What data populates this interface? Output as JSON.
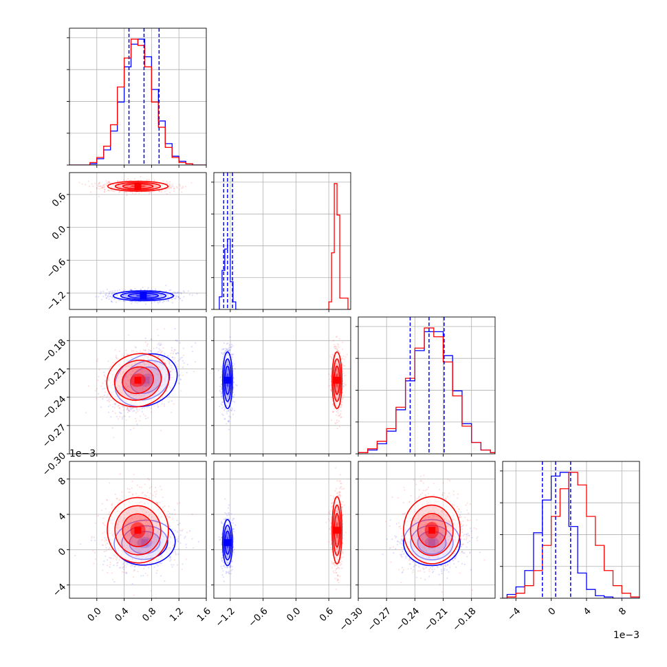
{
  "chart_data": {
    "type": "corner",
    "parameters": 4,
    "colors": {
      "blue": "#0000ff",
      "red": "#ff0000"
    },
    "axes": {
      "p1": {
        "range": [
          -0.4,
          1.6
        ],
        "ticks": [
          "0.0",
          "0.4",
          "0.8",
          "1.2",
          "1.6"
        ],
        "tick_values": [
          0.0,
          0.4,
          0.8,
          1.2,
          1.6
        ]
      },
      "p2": {
        "range": [
          -1.5,
          1.0
        ],
        "ticks": [
          "-1.2",
          "-0.6",
          "0.0",
          "0.6"
        ],
        "tick_values": [
          -1.2,
          -0.6,
          0.0,
          0.6
        ]
      },
      "p3": {
        "range": [
          -0.3,
          -0.155
        ],
        "ticks": [
          "-0.30",
          "-0.27",
          "-0.24",
          "-0.21",
          "-0.18"
        ],
        "tick_values": [
          -0.3,
          -0.27,
          -0.24,
          -0.21,
          -0.18
        ]
      },
      "p4": {
        "range": [
          -0.0055,
          0.01
        ],
        "ticks": [
          "-4",
          "0",
          "4",
          "8"
        ],
        "tick_values": [
          -0.004,
          0.0,
          0.004,
          0.008
        ],
        "multiplier": "1e−3"
      }
    },
    "quantile_lines": {
      "p1": [
        0.47,
        0.69,
        0.91
      ],
      "p2": [
        -1.32,
        -1.25,
        -1.16
      ],
      "p3": [
        -0.245,
        -0.225,
        -0.209
      ],
      "p4": [
        -0.001,
        0.0005,
        0.0022
      ]
    },
    "series": [
      {
        "color": "blue",
        "hist": {
          "p1": {
            "edges": [
              -0.4,
              -0.3,
              -0.2,
              -0.1,
              0.0,
              0.1,
              0.2,
              0.3,
              0.4,
              0.5,
              0.6,
              0.7,
              0.8,
              0.9,
              1.0,
              1.1,
              1.2,
              1.3,
              1.4,
              1.5,
              1.6
            ],
            "counts": [
              0,
              0,
              0,
              0.01,
              0.05,
              0.12,
              0.27,
              0.5,
              0.78,
              0.96,
              1.0,
              0.86,
              0.6,
              0.35,
              0.17,
              0.07,
              0.03,
              0.01,
              0,
              0
            ]
          },
          "p2": {
            "edges": [
              -1.4,
              -1.35,
              -1.3,
              -1.25,
              -1.2,
              -1.15,
              -1.1,
              -1.05
            ],
            "counts": [
              0.1,
              0.31,
              0.48,
              0.56,
              0.22,
              0.06,
              0.0
            ]
          },
          "p3": {
            "edges": [
              -0.3,
              -0.29,
              -0.28,
              -0.27,
              -0.26,
              -0.25,
              -0.24,
              -0.23,
              -0.22,
              -0.21,
              -0.2,
              -0.19,
              -0.18,
              -0.17,
              -0.16,
              -0.155
            ],
            "counts": [
              0.01,
              0.03,
              0.08,
              0.18,
              0.35,
              0.58,
              0.82,
              0.97,
              0.97,
              0.78,
              0.5,
              0.24,
              0.09,
              0.03,
              0.01
            ]
          },
          "p4": {
            "edges": [
              -0.006,
              -0.005,
              -0.004,
              -0.003,
              -0.002,
              -0.001,
              0.0,
              0.001,
              0.002,
              0.003,
              0.004,
              0.005,
              0.006,
              0.007,
              0.008,
              0.009,
              0.01
            ],
            "counts": [
              0.0,
              0.03,
              0.09,
              0.22,
              0.52,
              0.78,
              0.97,
              1.0,
              0.57,
              0.2,
              0.07,
              0.02,
              0.01,
              0,
              0,
              0
            ]
          }
        },
        "density": {
          "p1_p2": {
            "x": 0.68,
            "y": -1.25,
            "sx": 0.22,
            "sy": 0.045,
            "rho": 0.0
          },
          "p1_p3": {
            "x": 0.72,
            "y": -0.222,
            "sx": 0.22,
            "sy": 0.015,
            "rho": 0.5
          },
          "p2_p3": {
            "x": -1.25,
            "y": -0.222,
            "sx": 0.045,
            "sy": 0.015,
            "rho": 0.0
          },
          "p1_p4": {
            "x": 0.7,
            "y": 0.0008,
            "sx": 0.22,
            "sy": 0.0013,
            "rho": 0.1
          },
          "p2_p4": {
            "x": -1.25,
            "y": 0.0008,
            "sx": 0.045,
            "sy": 0.0013,
            "rho": 0.0
          },
          "p3_p4": {
            "x": -0.222,
            "y": 0.0008,
            "sx": 0.015,
            "sy": 0.0013,
            "rho": 0.0
          }
        }
      },
      {
        "color": "red",
        "hist": {
          "p1": {
            "edges": [
              -0.4,
              -0.3,
              -0.2,
              -0.1,
              0.0,
              0.1,
              0.2,
              0.3,
              0.4,
              0.5,
              0.6,
              0.7,
              0.8,
              0.9,
              1.0,
              1.1,
              1.2,
              1.3,
              1.4,
              1.5,
              1.6
            ],
            "counts": [
              0,
              0,
              0,
              0.02,
              0.06,
              0.15,
              0.32,
              0.62,
              0.85,
              1.0,
              0.95,
              0.78,
              0.5,
              0.3,
              0.14,
              0.06,
              0.02,
              0.01,
              0,
              0
            ]
          },
          "p2": {
            "edges": [
              0.55,
              0.6,
              0.65,
              0.7,
              0.75,
              0.8,
              0.85,
              0.9,
              0.95,
              1.0
            ],
            "counts": [
              0.0,
              0.06,
              0.45,
              1.0,
              0.75,
              0.09,
              0.09,
              0.09,
              0.0
            ]
          },
          "p3": {
            "edges": [
              -0.3,
              -0.29,
              -0.28,
              -0.27,
              -0.26,
              -0.25,
              -0.24,
              -0.23,
              -0.22,
              -0.21,
              -0.2,
              -0.19,
              -0.18,
              -0.17,
              -0.16,
              -0.155
            ],
            "counts": [
              0.01,
              0.04,
              0.1,
              0.2,
              0.37,
              0.6,
              0.84,
              1.0,
              0.93,
              0.73,
              0.46,
              0.22,
              0.09,
              0.03,
              0.01
            ]
          },
          "p4": {
            "edges": [
              -0.006,
              -0.005,
              -0.004,
              -0.003,
              -0.002,
              -0.001,
              0.0,
              0.001,
              0.002,
              0.003,
              0.004,
              0.005,
              0.006,
              0.007,
              0.008,
              0.009,
              0.01
            ],
            "counts": [
              0.0,
              0.01,
              0.04,
              0.1,
              0.22,
              0.42,
              0.65,
              0.87,
              1.0,
              0.9,
              0.65,
              0.42,
              0.22,
              0.1,
              0.04,
              0.01
            ]
          }
        },
        "density": {
          "p1_p2": {
            "x": 0.6,
            "y": 0.75,
            "sx": 0.22,
            "sy": 0.045,
            "rho": 0.0
          },
          "p1_p3": {
            "x": 0.6,
            "y": -0.222,
            "sx": 0.22,
            "sy": 0.015,
            "rho": 0.3
          },
          "p2_p3": {
            "x": 0.75,
            "y": -0.222,
            "sx": 0.045,
            "sy": 0.015,
            "rho": 0.0
          },
          "p1_p4": {
            "x": 0.6,
            "y": 0.0022,
            "sx": 0.22,
            "sy": 0.0019,
            "rho": 0.1
          },
          "p2_p4": {
            "x": 0.75,
            "y": 0.0022,
            "sx": 0.045,
            "sy": 0.0019,
            "rho": 0.0
          },
          "p3_p4": {
            "x": -0.222,
            "y": 0.0022,
            "sx": 0.015,
            "sy": 0.0019,
            "rho": 0.0
          }
        }
      }
    ],
    "grid": true
  }
}
